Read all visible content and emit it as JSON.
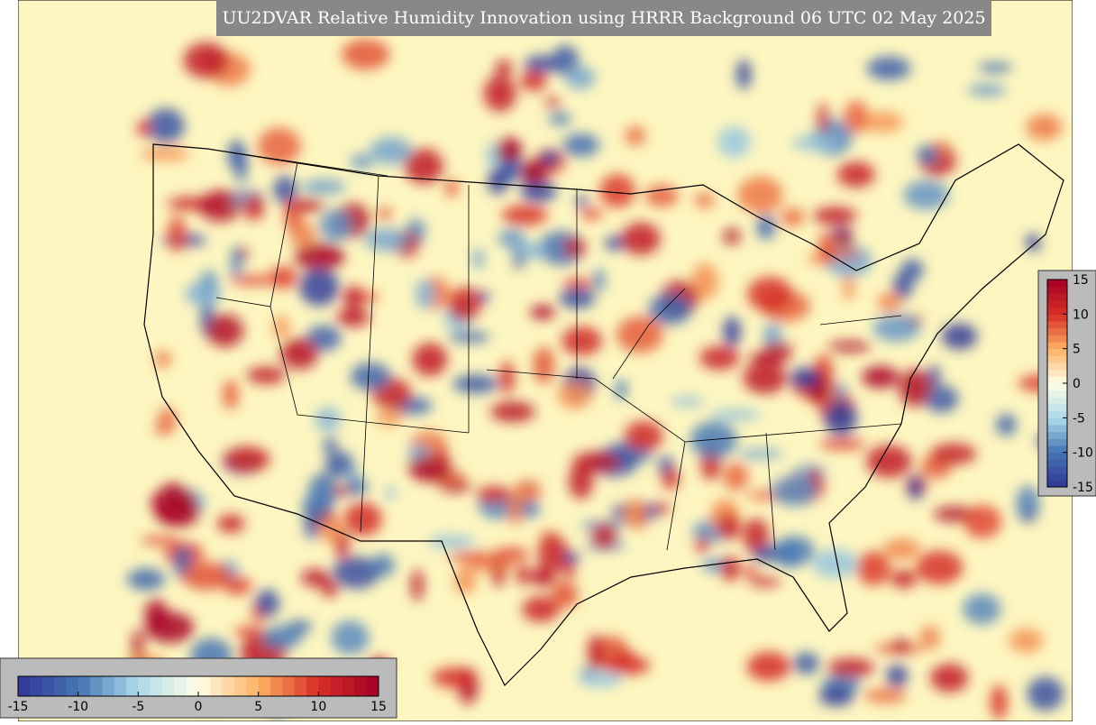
{
  "title": "UU2DVAR Relative Humidity Innovation using HRRR Background 06 UTC 02 May 2025",
  "range": [
    -15,
    15
  ],
  "colorbars": [
    {
      "orientation": "vertical",
      "ticks": [
        15,
        10,
        5,
        0,
        -5,
        -10,
        -15
      ]
    },
    {
      "orientation": "horizontal",
      "ticks": [
        -15,
        -10,
        -5,
        0,
        5,
        10,
        15
      ]
    }
  ]
}
